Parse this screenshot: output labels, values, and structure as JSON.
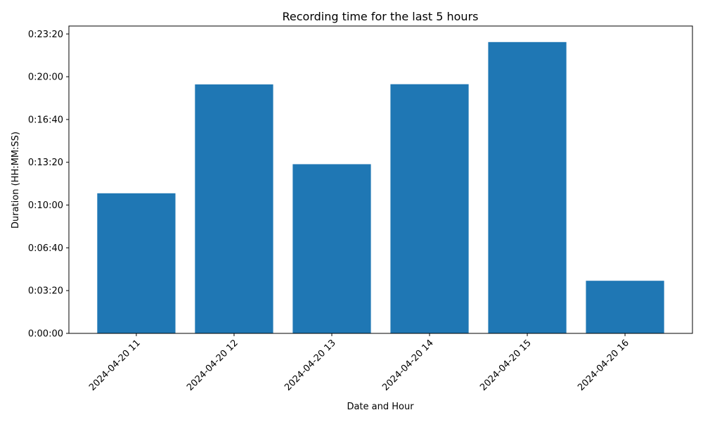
{
  "chart_data": {
    "type": "bar",
    "title": "Recording time for the last 5 hours",
    "xlabel": "Date and Hour",
    "ylabel": "Duration (HH:MM:SS)",
    "categories": [
      "2024-04-20 11",
      "2024-04-20 12",
      "2024-04-20 13",
      "2024-04-20 14",
      "2024-04-20 15",
      "2024-04-20 16"
    ],
    "values": [
      "0:10:55",
      "0:19:24",
      "0:13:11",
      "0:19:25",
      "0:22:42",
      "0:04:06"
    ],
    "y_ticks": [
      "0:00:00",
      "0:03:20",
      "0:06:40",
      "0:10:00",
      "0:13:20",
      "0:16:40",
      "0:20:00",
      "0:23:20"
    ],
    "ylim": [
      "0:00:00",
      "0:23:57"
    ],
    "bar_color": "#1f77b4",
    "grid": false,
    "legend": "none"
  }
}
